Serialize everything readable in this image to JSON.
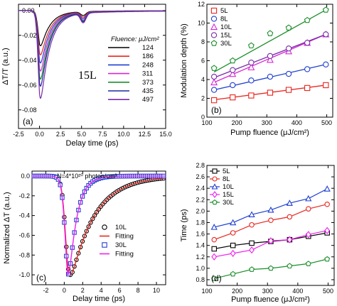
{
  "chart_data": [
    {
      "id": "a",
      "type": "line",
      "panel_label": "(a)",
      "inset_label": "15L",
      "xlabel": "Delay time (ps)",
      "ylabel": "ΔT/T (a.u.)",
      "xlim": [
        -2.5,
        15.0
      ],
      "ylim": [
        -0.095,
        0.005
      ],
      "xticks": [
        "-2.5",
        "0.0",
        "2.5",
        "5.0",
        "7.5",
        "10.0",
        "12.5",
        "15.0"
      ],
      "yticks": [
        "0.00",
        "-0.02",
        "-0.04",
        "-0.06",
        "-0.08"
      ],
      "legend_title": "Fluence: μJ/cm²",
      "legend_position": "center-right",
      "series": [
        {
          "name": "124",
          "color": "#000000",
          "peak": -0.035,
          "dip2": -0.003
        },
        {
          "name": "186",
          "color": "#e8261e",
          "peak": -0.044,
          "dip2": -0.004
        },
        {
          "name": "248",
          "color": "#1f3fd0",
          "peak": -0.052,
          "dip2": -0.005
        },
        {
          "name": "311",
          "color": "#d628d6",
          "peak": -0.06,
          "dip2": -0.006
        },
        {
          "name": "373",
          "color": "#1a8f2a",
          "peak": -0.068,
          "dip2": -0.0065
        },
        {
          "name": "435",
          "color": "#1a2aa0",
          "peak": -0.075,
          "dip2": -0.007
        },
        {
          "name": "497",
          "color": "#7a2aa8",
          "peak": -0.087,
          "dip2": -0.0075
        }
      ]
    },
    {
      "id": "b",
      "type": "scatter",
      "panel_label": "(b)",
      "xlabel": "Pump fluence (μJ/cm²)",
      "ylabel": "Modulation depth (%)",
      "xlim": [
        100,
        520
      ],
      "ylim": [
        0,
        12
      ],
      "xticks": [
        "100",
        "200",
        "300",
        "400",
        "500"
      ],
      "yticks": [
        "0",
        "2",
        "4",
        "6",
        "8",
        "10",
        "12"
      ],
      "legend_position": "top-left",
      "x": [
        124,
        186,
        248,
        311,
        373,
        435,
        497
      ],
      "series": [
        {
          "name": "5L",
          "color": "#e8261e",
          "marker": "square",
          "values": [
            1.8,
            2.1,
            2.3,
            2.6,
            2.9,
            3.1,
            3.4
          ],
          "fit": [
            1.85,
            3.4
          ]
        },
        {
          "name": "8L",
          "color": "#1f3fd0",
          "marker": "circle",
          "values": [
            2.9,
            3.4,
            3.9,
            4.3,
            4.6,
            5.1,
            5.6
          ],
          "fit": [
            2.9,
            5.6
          ]
        },
        {
          "name": "10L",
          "color": "#d628d6",
          "marker": "triangle",
          "values": [
            3.7,
            4.6,
            5.3,
            6.1,
            7.0,
            7.9,
            8.8
          ],
          "fit": [
            3.7,
            8.8
          ]
        },
        {
          "name": "15L",
          "color": "#7a2aa8",
          "marker": "circle",
          "values": [
            4.3,
            5.0,
            5.8,
            6.5,
            7.3,
            7.9,
            8.8
          ],
          "fit": [
            4.2,
            8.8
          ]
        },
        {
          "name": "30L",
          "color": "#1a8f2a",
          "marker": "pentagon",
          "values": [
            5.2,
            6.0,
            7.6,
            8.9,
            9.5,
            10.3,
            11.4
          ],
          "fit": [
            4.8,
            11.4
          ]
        }
      ]
    },
    {
      "id": "c",
      "type": "line",
      "panel_label": "(c)",
      "annotation": "N=4*10²⁰ photon/cm³",
      "xlabel": "Delay time (ps)",
      "ylabel": "Normalized ΔT (a.u.)",
      "xlim": [
        -3.5,
        11
      ],
      "ylim": [
        -1.1,
        0.05
      ],
      "xticks": [
        "-2",
        "0",
        "2",
        "4",
        "6",
        "8",
        "10"
      ],
      "yticks": [
        "0.0",
        "-0.2",
        "-0.4",
        "-0.6",
        "-0.8",
        "-1.0"
      ],
      "legend_position": "center-right",
      "series": [
        {
          "name": "10L",
          "color": "#000000",
          "kind": "markers",
          "marker": "circle-open",
          "recovery": 2.6
        },
        {
          "name": "Fitting",
          "color": "#e8261e",
          "kind": "line",
          "recovery": 2.6
        },
        {
          "name": "30L",
          "color": "#1f3fd0",
          "kind": "markers",
          "marker": "square-open",
          "recovery": 0.85
        },
        {
          "name": "Fitting",
          "color": "#ee20ee",
          "kind": "line",
          "recovery": 0.85
        }
      ]
    },
    {
      "id": "d",
      "type": "scatter",
      "panel_label": "(d)",
      "xlabel": "Pump fluence (μJ/cm²)",
      "ylabel": "Time (ps)",
      "xlim": [
        100,
        520
      ],
      "ylim": [
        0.7,
        2.8
      ],
      "xticks": [
        "100",
        "200",
        "300",
        "400",
        "500"
      ],
      "yticks": [
        "0.8",
        "1.0",
        "1.2",
        "1.4",
        "1.6",
        "1.8",
        "2.0",
        "2.2",
        "2.4",
        "2.6",
        "2.8"
      ],
      "legend_position": "top-left",
      "x": [
        124,
        186,
        248,
        311,
        373,
        435,
        497
      ],
      "series": [
        {
          "name": "5L",
          "color": "#000000",
          "marker": "square",
          "values": [
            1.34,
            1.4,
            1.44,
            1.47,
            1.5,
            1.56,
            1.62
          ]
        },
        {
          "name": "8L",
          "color": "#e8261e",
          "marker": "circle",
          "values": [
            1.5,
            1.62,
            1.76,
            1.84,
            1.9,
            2.04,
            2.12
          ]
        },
        {
          "name": "10L",
          "color": "#1f3fd0",
          "marker": "triangle",
          "values": [
            1.72,
            1.8,
            1.94,
            2.02,
            2.14,
            2.22,
            2.39
          ]
        },
        {
          "name": "15L",
          "color": "#ee20ee",
          "marker": "diamond",
          "values": [
            1.2,
            1.26,
            1.32,
            1.48,
            1.5,
            1.59,
            1.66
          ]
        },
        {
          "name": "30L",
          "color": "#1a8f2a",
          "marker": "pentagon",
          "values": [
            0.82,
            0.9,
            0.98,
            1.0,
            1.04,
            1.08,
            1.16
          ]
        }
      ]
    }
  ]
}
